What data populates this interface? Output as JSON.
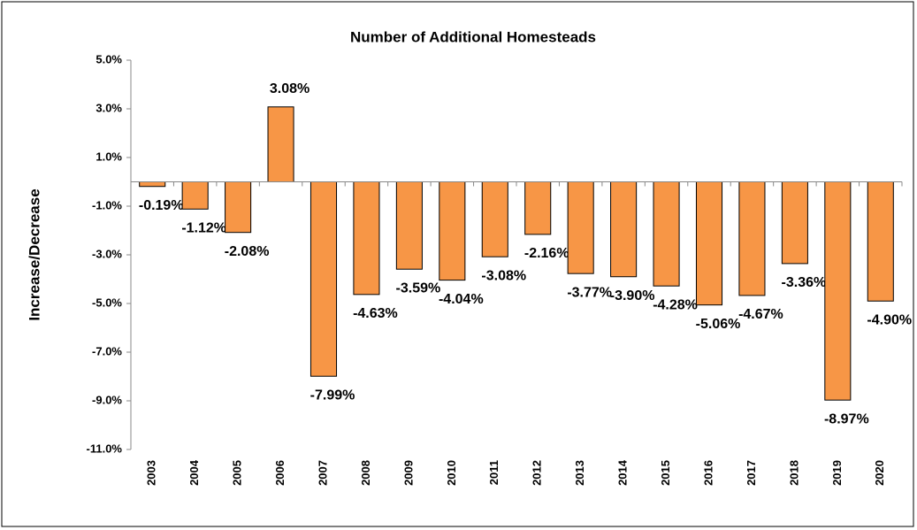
{
  "chart_data": {
    "type": "bar",
    "title": "Number of Additional Homesteads",
    "y_label": "Increase/Decrease",
    "categories": [
      "2003",
      "2004",
      "2005",
      "2006",
      "2007",
      "2008",
      "2009",
      "2010",
      "2011",
      "2012",
      "2013",
      "2014",
      "2015",
      "2016",
      "2017",
      "2018",
      "2019",
      "2020"
    ],
    "values": [
      -0.19,
      -1.12,
      -2.08,
      3.08,
      -7.99,
      -4.63,
      -3.59,
      -4.04,
      -3.08,
      -2.16,
      -3.77,
      -3.9,
      -4.28,
      -5.06,
      -4.67,
      -3.36,
      -8.97,
      -4.9
    ],
    "value_labels": [
      "-0.19%",
      "-1.12%",
      "-2.08%",
      "3.08%",
      "-7.99%",
      "-4.63%",
      "-3.59%",
      "-4.04%",
      "-3.08%",
      "-2.16%",
      "-3.77%",
      "-3.90%",
      "-4.28%",
      "-5.06%",
      "-4.67%",
      "-3.36%",
      "-8.97%",
      "-4.90%"
    ],
    "color": "#f79646",
    "ylim": [
      -11,
      5
    ],
    "yticks": [
      {
        "value": 5,
        "label": "5.0%"
      },
      {
        "value": 3,
        "label": "3.0%"
      },
      {
        "value": 1,
        "label": "1.0%"
      },
      {
        "value": -1,
        "label": "-1.0%"
      },
      {
        "value": -3,
        "label": "-3.0%"
      },
      {
        "value": -5,
        "label": "-5.0%"
      },
      {
        "value": -7,
        "label": "-7.0%"
      },
      {
        "value": -9,
        "label": "-9.0%"
      },
      {
        "value": -11,
        "label": "-11.0%"
      }
    ],
    "grid": false
  }
}
